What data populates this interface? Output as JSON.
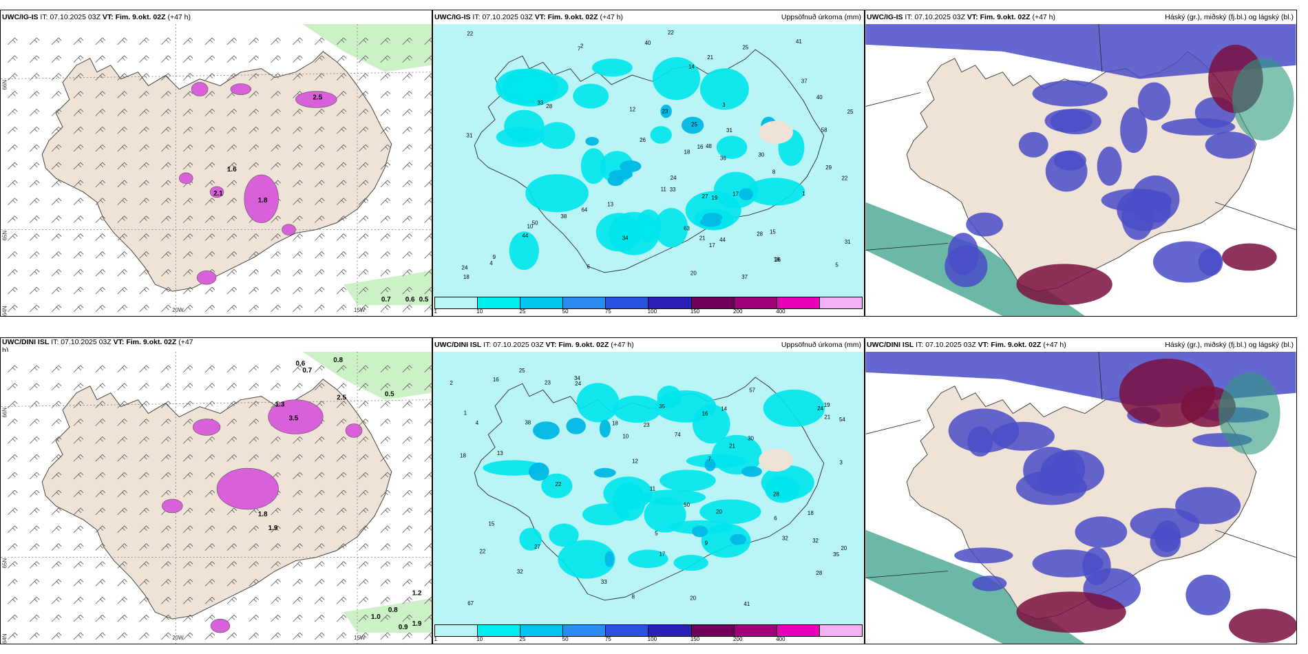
{
  "panels": [
    {
      "id": "p1",
      "model": "UWC/IG-IS",
      "it_label": "IT:",
      "it_value": "07.10.2025 03Z",
      "vt_label": "VT:",
      "vt_value": "Fim. 9.okt. 02Z",
      "lead": "(+47 h)",
      "right_title": ""
    },
    {
      "id": "p2",
      "model": "UWC/IG-IS",
      "it_label": "IT:",
      "it_value": "07.10.2025 03Z",
      "vt_label": "VT:",
      "vt_value": "Fim. 9.okt. 02Z",
      "lead": "(+47 h)",
      "right_title": "Uppsöfnuð úrkoma (mm)"
    },
    {
      "id": "p3",
      "model": "UWC/IG-IS",
      "it_label": "IT:",
      "it_value": "07.10.2025 03Z",
      "vt_label": "VT:",
      "vt_value": "Fim. 9.okt. 02Z",
      "lead": "(+47 h)",
      "right_title": "Háský (gr.), miðský (fj.bl.) og lágský (bl.)"
    },
    {
      "id": "p4",
      "model": "UWC/DINI ISL",
      "it_label": "IT:",
      "it_value": "07.10.2025 03Z",
      "vt_label": "VT:",
      "vt_value": "Fim. 9.okt. 02Z",
      "lead": "(+47",
      "lead2": "h)",
      "right_title": ""
    },
    {
      "id": "p5",
      "model": "UWC/DINI ISL",
      "it_label": "IT:",
      "it_value": "07.10.2025 03Z",
      "vt_label": "VT:",
      "vt_value": "Fim. 9.okt. 02Z",
      "lead": "(+47 h)",
      "right_title": "Uppsöfnuð úrkoma (mm)"
    },
    {
      "id": "p6",
      "model": "UWC/DINI ISL",
      "it_label": "IT:",
      "it_value": "07.10.2025 03Z",
      "vt_label": "VT:",
      "vt_value": "Fim. 9.okt. 02Z",
      "lead": "(+47 h)",
      "right_title": "Háský (gr.), miðský (fj.bl.) og lágský (bl.)"
    }
  ],
  "axis_labels": {
    "lon_20": "20W",
    "lon_15": "15W",
    "lat_66": "66N",
    "lat_65": "65N",
    "lat_64": "64N"
  },
  "colorbar": {
    "colors": [
      "#b9f5f7",
      "#00f0f0",
      "#00c4f0",
      "#2a8cf0",
      "#2a52e0",
      "#2a20b8",
      "#70005a",
      "#a0007a",
      "#e800b8",
      "#f4b0f4"
    ],
    "labels": [
      "1",
      "10",
      "25",
      "50",
      "75",
      "100",
      "150",
      "200",
      "400"
    ]
  },
  "colors": {
    "land": "#efe2d6",
    "sea_precip": "#b9f5f7",
    "precip_mid": "#00e6ec",
    "precip_dark": "#00b8e4",
    "cloud_low": "#4a4cc8",
    "cloud_high": "#7a1040",
    "cloud_mid": "#2e9a80",
    "wind_green": "#c8f0c0",
    "precip_pink": "#d860d8"
  },
  "precip_values_top": [
    "40",
    "48",
    "58",
    "50",
    "37",
    "29",
    "26",
    "30",
    "22",
    "21",
    "19",
    "14",
    "31",
    "41",
    "40",
    "33",
    "37",
    "64",
    "36",
    "63",
    "44",
    "44",
    "28",
    "18",
    "24",
    "25",
    "23",
    "21",
    "34",
    "31",
    "38",
    "18",
    "16",
    "15",
    "13",
    "17",
    "11",
    "10",
    "9",
    "8",
    "7",
    "6",
    "5",
    "4",
    "3",
    "2",
    "1",
    "12",
    "28",
    "22",
    "25",
    "18",
    "25",
    "27",
    "31",
    "26",
    "17",
    "20",
    "22",
    "33",
    "24"
  ],
  "precip_values_bottom": [
    "32",
    "35",
    "33",
    "32",
    "28",
    "27",
    "21",
    "22",
    "23",
    "16",
    "14",
    "17",
    "18",
    "19",
    "20",
    "24",
    "25",
    "23",
    "54",
    "57",
    "50",
    "32",
    "20",
    "18",
    "67",
    "38",
    "28",
    "30",
    "41",
    "74",
    "24",
    "21",
    "34",
    "15",
    "13",
    "11",
    "10",
    "9",
    "8",
    "7",
    "6",
    "5",
    "4",
    "3",
    "2",
    "1",
    "12",
    "22",
    "18",
    "20",
    "16",
    "35"
  ],
  "tp_values_top": [
    "2.5",
    "1.8",
    "2.1",
    "1.6",
    "0.7",
    "0.6",
    "0.5"
  ],
  "tp_values_bottom": [
    "3.5",
    "1.3",
    "1.8",
    "1.9",
    "0.6",
    "0.7",
    "0.8",
    "2.5",
    "0.5",
    "1.2",
    "0.8",
    "1.0",
    "0.9",
    "1.9"
  ]
}
